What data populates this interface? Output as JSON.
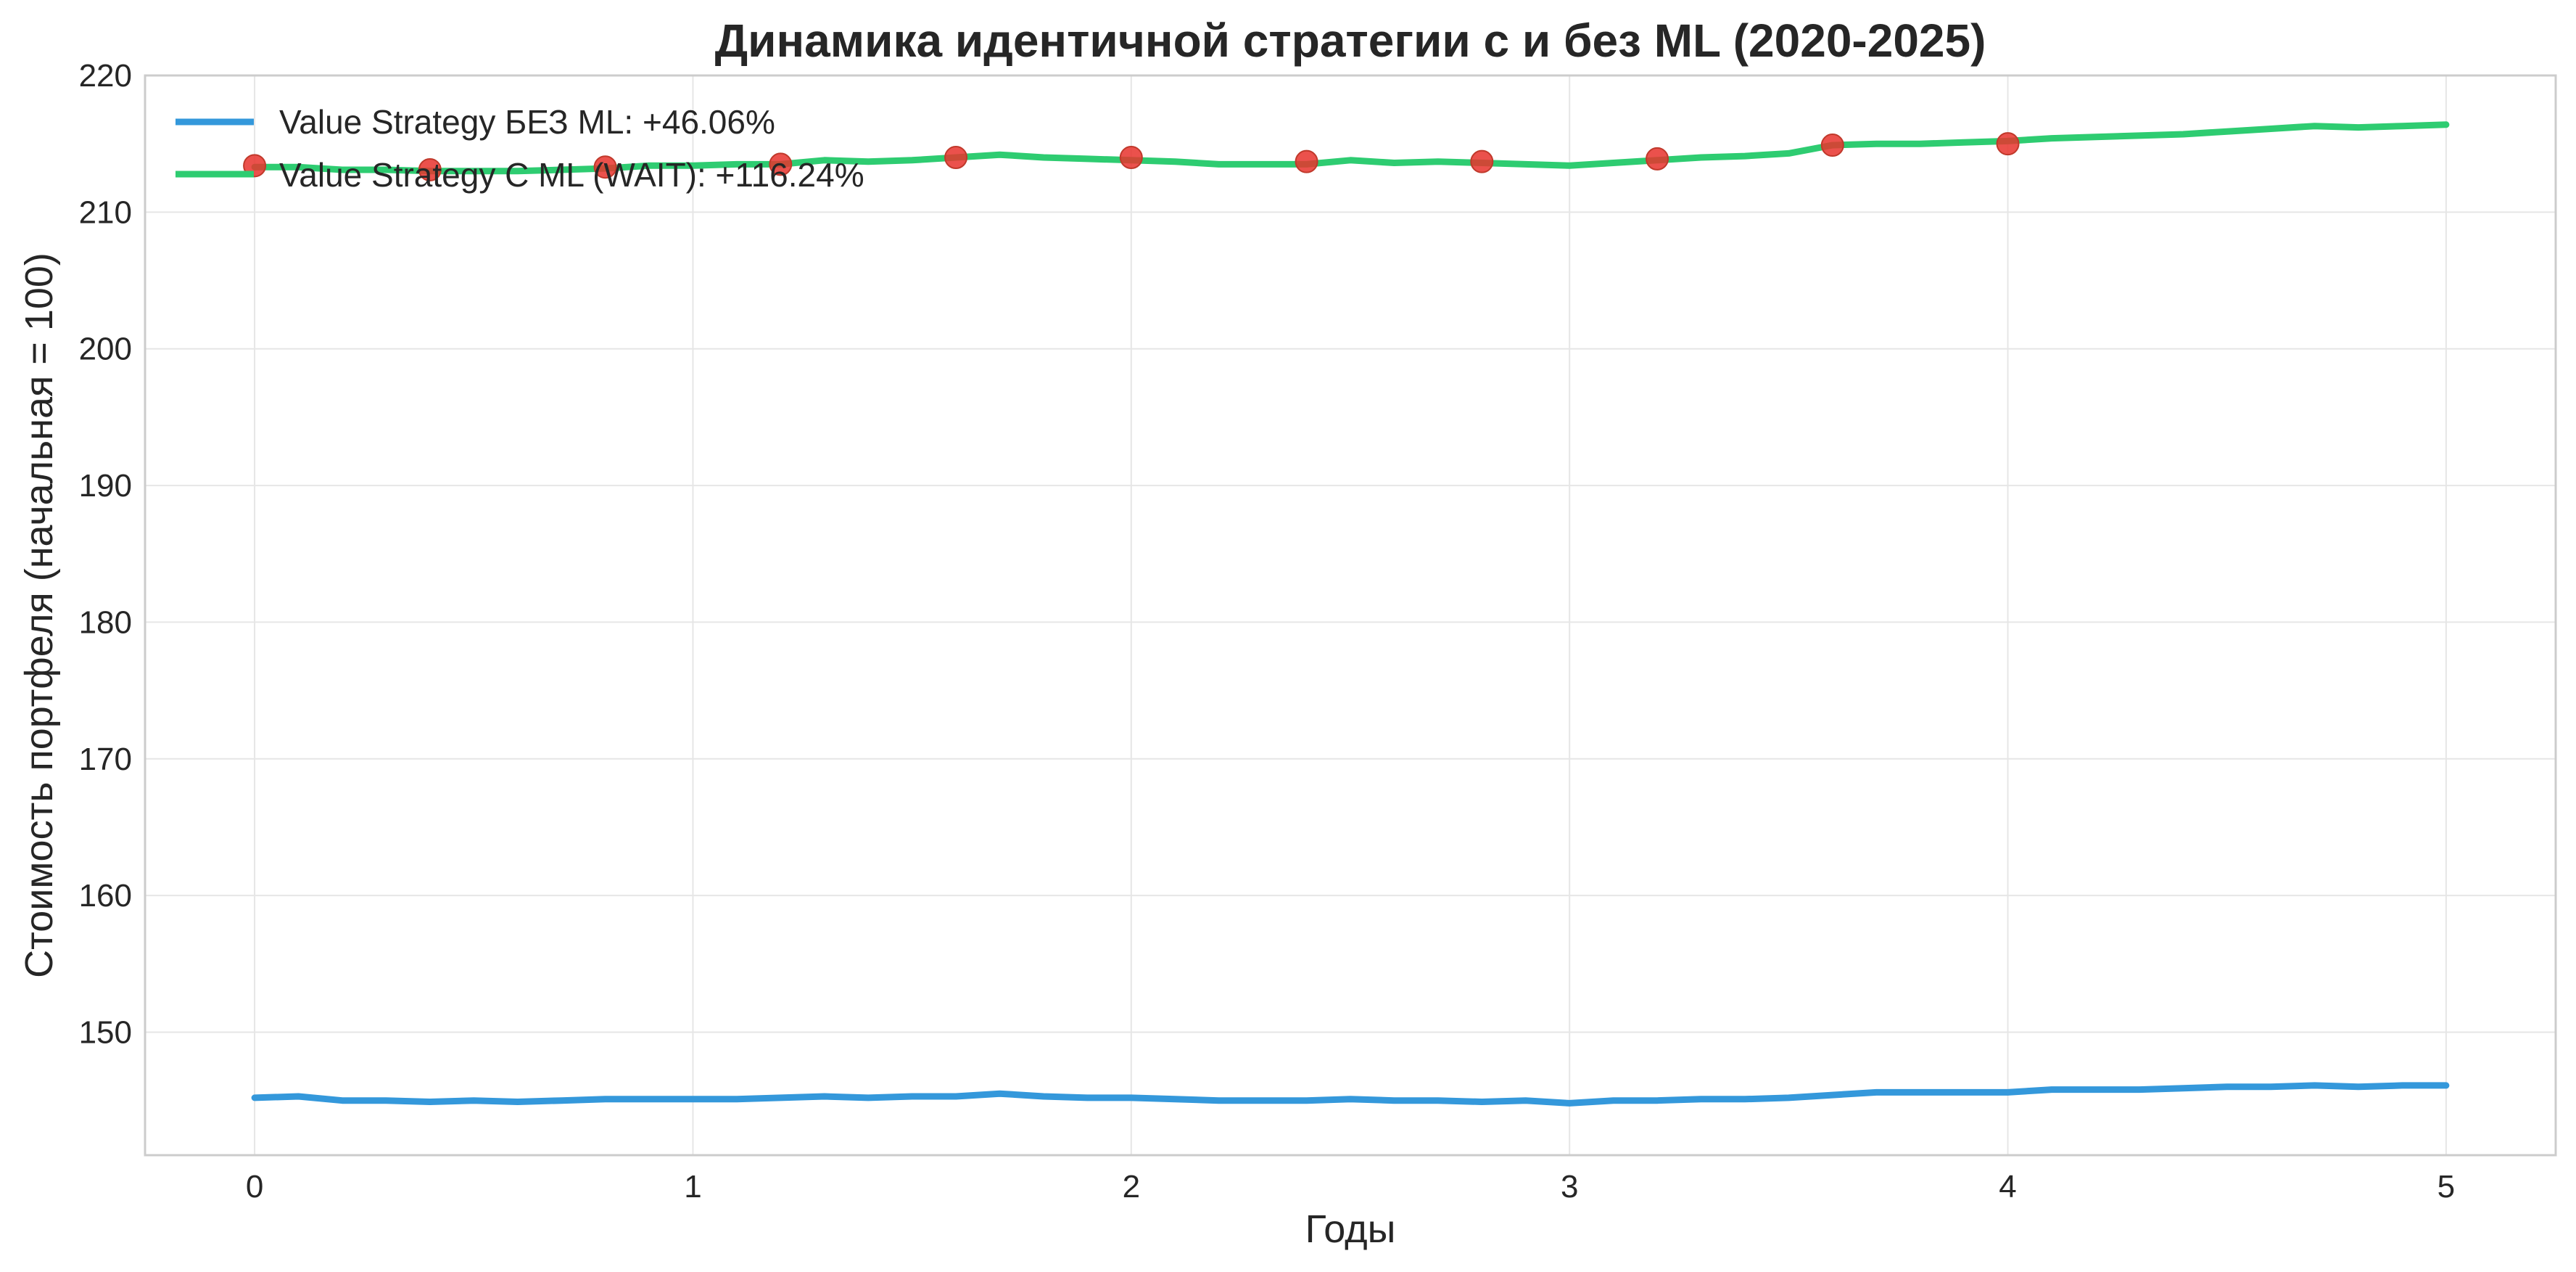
{
  "colors": {
    "series_no_ml": "#3498db",
    "series_ml": "#2ecc71",
    "markers": "#e8322d",
    "grid": "#e6e6e6",
    "frame": "#cccccc",
    "text": "#262626"
  },
  "chart_data": {
    "type": "line",
    "title": "Динамика идентичной стратегии с и без ML (2020-2025)",
    "xlabel": "Годы",
    "ylabel": "Стоимость портфеля (начальная = 100)",
    "xlim": [
      -0.25,
      5.25
    ],
    "ylim": [
      141,
      220
    ],
    "xticks": [
      "0",
      "1",
      "2",
      "3",
      "4",
      "5"
    ],
    "yticks": [
      "150",
      "160",
      "170",
      "180",
      "190",
      "200",
      "210",
      "220"
    ],
    "grid": true,
    "legend_position": "top-left",
    "series": [
      {
        "name": "Value Strategy БЕЗ ML: +46.06%",
        "x": [
          0,
          0.1,
          0.2,
          0.3,
          0.4,
          0.5,
          0.6,
          0.7,
          0.8,
          0.9,
          1.0,
          1.1,
          1.2,
          1.3,
          1.4,
          1.5,
          1.6,
          1.7,
          1.8,
          1.9,
          2.0,
          2.1,
          2.2,
          2.3,
          2.4,
          2.5,
          2.6,
          2.7,
          2.8,
          2.9,
          3.0,
          3.1,
          3.2,
          3.3,
          3.4,
          3.5,
          3.6,
          3.7,
          3.8,
          3.9,
          4.0,
          4.1,
          4.2,
          4.3,
          4.4,
          4.5,
          4.6,
          4.7,
          4.8,
          4.9,
          5.0
        ],
        "y": [
          145.2,
          145.3,
          145.0,
          145.0,
          144.9,
          145.0,
          144.9,
          145.0,
          145.1,
          145.1,
          145.1,
          145.1,
          145.2,
          145.3,
          145.2,
          145.3,
          145.3,
          145.5,
          145.3,
          145.2,
          145.2,
          145.1,
          145.0,
          145.0,
          145.0,
          145.1,
          145.0,
          145.0,
          144.9,
          145.0,
          144.8,
          145.0,
          145.0,
          145.1,
          145.1,
          145.2,
          145.4,
          145.6,
          145.6,
          145.6,
          145.6,
          145.8,
          145.8,
          145.8,
          145.9,
          146.0,
          146.0,
          146.1,
          146.0,
          146.1,
          146.1
        ]
      },
      {
        "name": "Value Strategy С ML (WAIT): +116.24%",
        "x": [
          0,
          0.1,
          0.2,
          0.3,
          0.4,
          0.5,
          0.6,
          0.7,
          0.8,
          0.9,
          1.0,
          1.1,
          1.2,
          1.3,
          1.4,
          1.5,
          1.6,
          1.7,
          1.8,
          1.9,
          2.0,
          2.1,
          2.2,
          2.3,
          2.4,
          2.5,
          2.6,
          2.7,
          2.8,
          2.9,
          3.0,
          3.1,
          3.2,
          3.3,
          3.4,
          3.5,
          3.6,
          3.7,
          3.8,
          3.9,
          4.0,
          4.1,
          4.2,
          4.3,
          4.4,
          4.5,
          4.6,
          4.7,
          4.8,
          4.9,
          5.0
        ],
        "y": [
          213.3,
          213.3,
          213.1,
          213.1,
          213.0,
          213.0,
          213.0,
          213.1,
          213.2,
          213.4,
          213.4,
          213.5,
          213.5,
          213.8,
          213.7,
          213.8,
          214.0,
          214.2,
          214.0,
          213.9,
          213.8,
          213.7,
          213.5,
          213.5,
          213.5,
          213.8,
          213.6,
          213.7,
          213.6,
          213.5,
          213.4,
          213.6,
          213.8,
          214.0,
          214.1,
          214.3,
          214.9,
          215.0,
          215.0,
          215.1,
          215.2,
          215.4,
          215.5,
          215.6,
          215.7,
          215.9,
          216.1,
          216.3,
          216.2,
          216.3,
          216.4
        ]
      }
    ],
    "markers": {
      "x": [
        0,
        0.4,
        0.8,
        1.2,
        1.6,
        2.0,
        2.4,
        2.8,
        3.2,
        3.6,
        4.0
      ],
      "y": [
        213.4,
        213.1,
        213.3,
        213.5,
        214.0,
        214.0,
        213.7,
        213.7,
        213.9,
        214.9,
        215.0
      ]
    }
  }
}
